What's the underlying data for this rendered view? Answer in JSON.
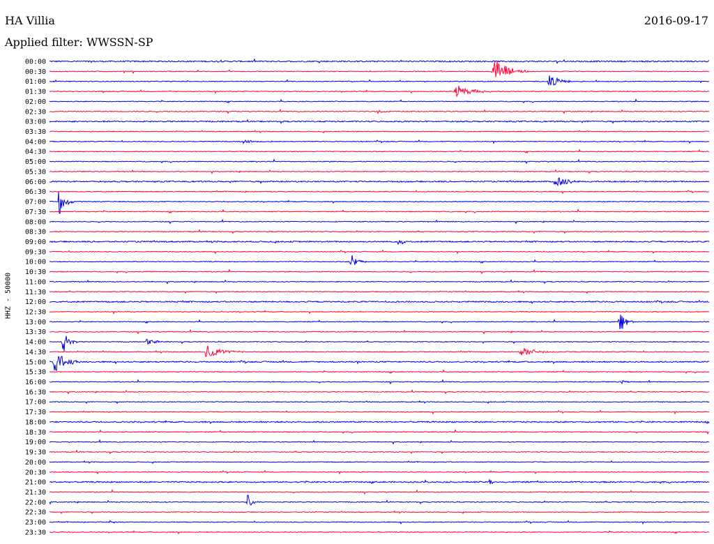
{
  "header": {
    "station": "HA Villia",
    "date": "2016-09-17",
    "filter": "Applied filter: WWSSN-SP"
  },
  "colors": {
    "blue": "#0000e0",
    "red": "#ff0033"
  },
  "chart_data": {
    "type": "line",
    "ylabel": "HHZ - 50000",
    "line_labels": [
      "00:00",
      "00:30",
      "01:00",
      "01:30",
      "02:00",
      "02:30",
      "03:00",
      "03:30",
      "04:00",
      "04:30",
      "05:00",
      "05:30",
      "06:00",
      "06:30",
      "07:00",
      "07:30",
      "08:00",
      "08:30",
      "09:00",
      "09:30",
      "10:00",
      "10:30",
      "11:00",
      "11:30",
      "12:00",
      "12:30",
      "13:00",
      "13:30",
      "14:00",
      "14:30",
      "15:00",
      "15:30",
      "16:00",
      "16:30",
      "17:00",
      "17:30",
      "18:00",
      "18:30",
      "19:00",
      "19:30",
      "20:00",
      "20:30",
      "21:00",
      "21:30",
      "22:00",
      "22:30",
      "23:00",
      "23:30"
    ],
    "line_minutes": 30,
    "events": [
      {
        "line": 1,
        "minute": 20.2,
        "amplitude": 22,
        "duration": 1.6
      },
      {
        "line": 2,
        "minute": 22.7,
        "amplitude": 10,
        "duration": 1.2
      },
      {
        "line": 3,
        "minute": 18.4,
        "amplitude": 12,
        "duration": 1.8
      },
      {
        "line": 5,
        "minute": 14.9,
        "amplitude": 3,
        "duration": 0.8
      },
      {
        "line": 8,
        "minute": 8.8,
        "amplitude": 3,
        "duration": 1.5
      },
      {
        "line": 12,
        "minute": 23.0,
        "amplitude": 14,
        "duration": 1.0
      },
      {
        "line": 13,
        "minute": 8.9,
        "amplitude": 3,
        "duration": 0.3
      },
      {
        "line": 14,
        "minute": 0.4,
        "amplitude": 24,
        "duration": 0.7
      },
      {
        "line": 18,
        "minute": 15.9,
        "amplitude": 12,
        "duration": 0.4
      },
      {
        "line": 20,
        "minute": 13.7,
        "amplitude": 12,
        "duration": 0.7
      },
      {
        "line": 26,
        "minute": 25.9,
        "amplitude": 20,
        "duration": 0.7
      },
      {
        "line": 28,
        "minute": 0.6,
        "amplitude": 18,
        "duration": 0.7
      },
      {
        "line": 28,
        "minute": 4.4,
        "amplitude": 4,
        "duration": 1.0
      },
      {
        "line": 29,
        "minute": 7.1,
        "amplitude": 10,
        "duration": 1.8
      },
      {
        "line": 29,
        "minute": 21.4,
        "amplitude": 8,
        "duration": 1.8
      },
      {
        "line": 30,
        "minute": 0.2,
        "amplitude": 20,
        "duration": 1.2
      },
      {
        "line": 32,
        "minute": 26.0,
        "amplitude": 3,
        "duration": 0.7
      },
      {
        "line": 42,
        "minute": 20.0,
        "amplitude": 4,
        "duration": 0.7
      },
      {
        "line": 44,
        "minute": 9.0,
        "amplitude": 12,
        "duration": 0.6
      },
      {
        "line": 46,
        "minute": 2.7,
        "amplitude": 3,
        "duration": 0.6
      }
    ]
  }
}
